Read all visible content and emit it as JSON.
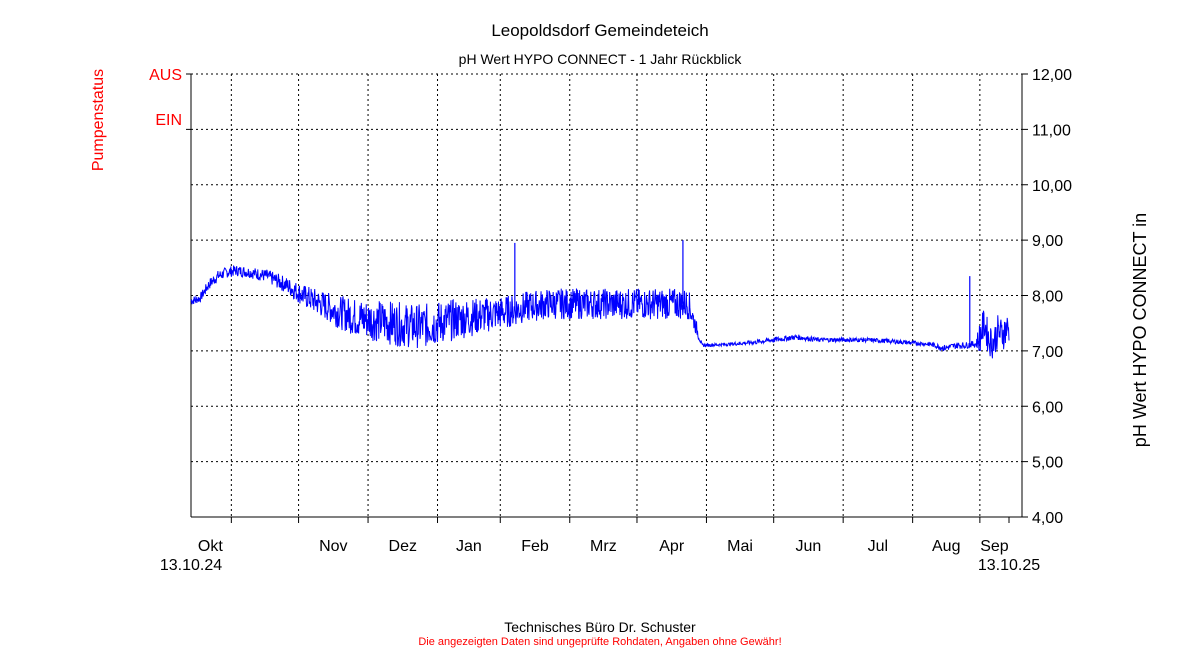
{
  "header": {
    "title": "Leopoldsdorf Gemeindeteich",
    "subtitle": "pH Wert HYPO CONNECT - 1 Jahr Rückblick"
  },
  "footer": {
    "company": "Technisches Büro Dr. Schuster",
    "disclaimer": "Die angezeigten Daten sind ungeprüfte Rohdaten, Angaben ohne Gewähr!"
  },
  "colors": {
    "series": "#0000ff",
    "pump": "#ff0000",
    "grid": "#000000"
  },
  "chart_data": {
    "type": "line",
    "title": "Leopoldsdorf Gemeindeteich",
    "subtitle": "pH Wert HYPO CONNECT - 1 Jahr Rückblick",
    "ylabel_right": "pH Wert HYPO CONNECT in",
    "ylabel_left": "Pumpenstatus",
    "pump_states": [
      "AUS",
      "EIN"
    ],
    "ylim": [
      4.0,
      12.0
    ],
    "yticks": [
      "4,00",
      "5,00",
      "6,00",
      "7,00",
      "8,00",
      "9,00",
      "10,00",
      "11,00",
      "12,00"
    ],
    "x_start_label": "13.10.24",
    "x_end_label": "13.10.25",
    "month_labels": [
      "Okt",
      "Nov",
      "Dez",
      "Jan",
      "Feb",
      "Mrz",
      "Apr",
      "Mai",
      "Jun",
      "Jul",
      "Aug",
      "Sep"
    ],
    "x_range_days": [
      0,
      365
    ],
    "month_boundaries_days": [
      18,
      48,
      79,
      110,
      138,
      169,
      199,
      230,
      260,
      291,
      322,
      352
    ],
    "grid": true,
    "series": [
      {
        "name": "pH Wert HYPO CONNECT",
        "x_days": [
          0,
          4,
          8,
          12,
          16,
          20,
          26,
          34,
          42,
          50,
          58,
          66,
          74,
          82,
          90,
          98,
          104,
          110,
          116,
          124,
          132,
          140,
          146,
          150,
          154,
          160,
          166,
          172,
          180,
          190,
          200,
          210,
          218,
          222,
          228,
          240,
          250,
          260,
          270,
          280,
          290,
          300,
          310,
          320,
          330,
          336,
          342,
          346,
          348,
          350,
          352,
          354,
          356,
          358,
          360,
          362,
          364
        ],
        "values": [
          7.9,
          7.95,
          8.2,
          8.35,
          8.42,
          8.45,
          8.42,
          8.35,
          8.2,
          8.0,
          7.85,
          7.7,
          7.6,
          7.55,
          7.5,
          7.45,
          7.45,
          7.5,
          7.55,
          7.6,
          7.65,
          7.7,
          7.75,
          7.8,
          7.82,
          7.85,
          7.85,
          7.85,
          7.85,
          7.85,
          7.85,
          7.85,
          7.85,
          7.85,
          7.1,
          7.12,
          7.15,
          7.2,
          7.25,
          7.2,
          7.2,
          7.2,
          7.18,
          7.15,
          7.12,
          7.05,
          7.1,
          7.1,
          7.12,
          7.12,
          7.25,
          7.5,
          7.2,
          7.15,
          7.35,
          7.3,
          7.4
        ],
        "noise_amplitude": [
          0.08,
          0.08,
          0.1,
          0.1,
          0.1,
          0.1,
          0.1,
          0.12,
          0.15,
          0.2,
          0.25,
          0.3,
          0.35,
          0.38,
          0.4,
          0.4,
          0.4,
          0.4,
          0.38,
          0.35,
          0.32,
          0.3,
          0.28,
          0.28,
          0.28,
          0.28,
          0.28,
          0.28,
          0.28,
          0.28,
          0.28,
          0.28,
          0.28,
          0.28,
          0.03,
          0.03,
          0.04,
          0.05,
          0.05,
          0.04,
          0.04,
          0.04,
          0.04,
          0.04,
          0.04,
          0.06,
          0.06,
          0.06,
          0.06,
          0.06,
          0.3,
          0.3,
          0.3,
          0.3,
          0.3,
          0.3,
          0.3
        ]
      }
    ],
    "spikes": [
      {
        "x_day": 144.5,
        "value": 8.95
      },
      {
        "x_day": 219.5,
        "value": 9.0
      },
      {
        "x_day": 347.5,
        "value": 8.35
      }
    ]
  }
}
